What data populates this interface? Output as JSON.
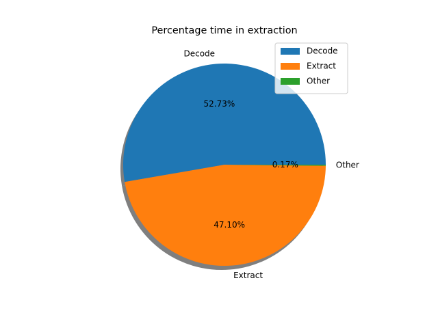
{
  "chart_data": {
    "type": "pie",
    "title": "Percentage time in extraction",
    "shadow": true,
    "start_angle_deg": 0,
    "direction": "counterclockwise",
    "legend_position": "upper-right",
    "slices": [
      {
        "label": "Decode",
        "value": 52.73,
        "pct_label": "52.73%",
        "color": "#1f77b4"
      },
      {
        "label": "Extract",
        "value": 47.1,
        "pct_label": "47.10%",
        "color": "#ff7f0e"
      },
      {
        "label": "Other",
        "value": 0.17,
        "pct_label": "0.17%",
        "color": "#2ca02c"
      }
    ]
  }
}
